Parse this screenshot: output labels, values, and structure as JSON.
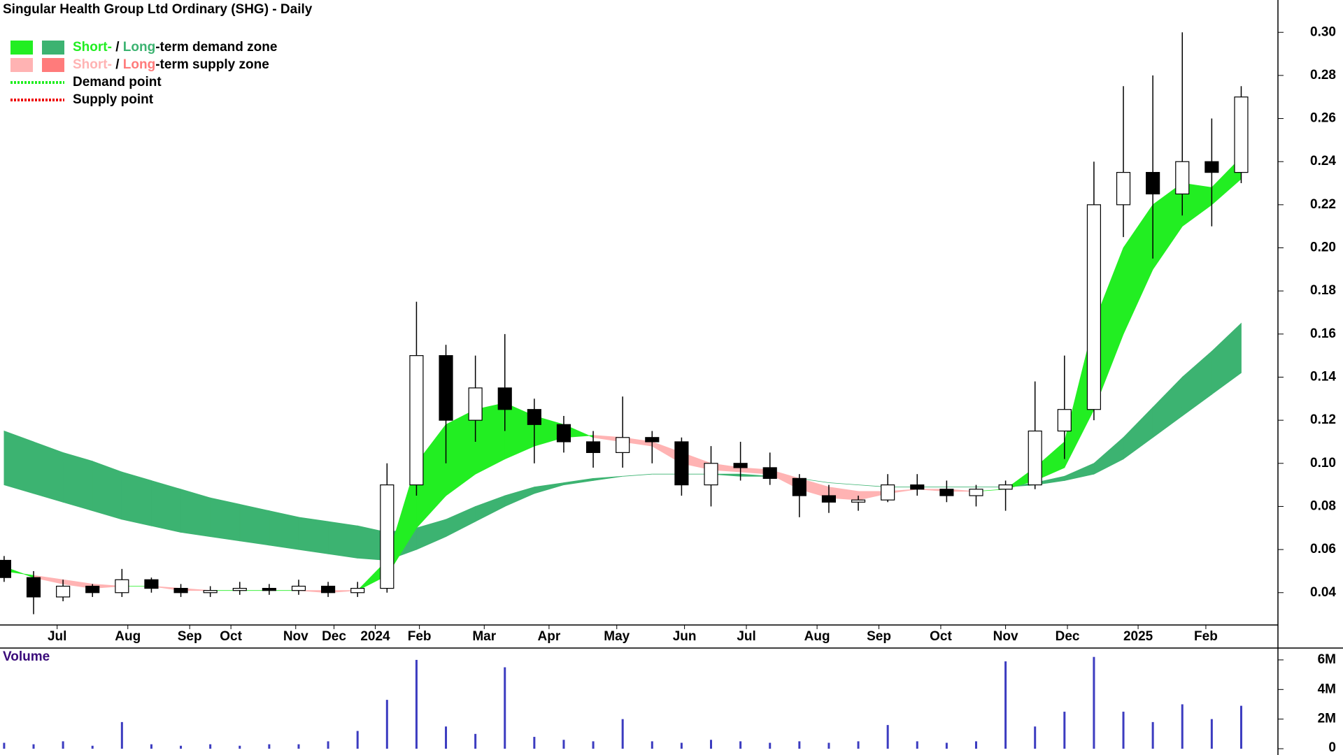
{
  "chart_data": {
    "type": "candlestick",
    "title": "Singular Health Group Ltd Ordinary (SHG) - Daily",
    "xlim": [
      -0.14,
      43.2
    ],
    "xticks": [
      {
        "value": 1.8,
        "label": "Jul"
      },
      {
        "value": 4.2,
        "label": "Aug"
      },
      {
        "value": 6.3,
        "label": "Sep"
      },
      {
        "value": 7.7,
        "label": "Oct"
      },
      {
        "value": 9.9,
        "label": "Nov"
      },
      {
        "value": 11.2,
        "label": "Dec"
      },
      {
        "value": 12.6,
        "label": "2024"
      },
      {
        "value": 14.1,
        "label": "Feb"
      },
      {
        "value": 16.3,
        "label": "Mar"
      },
      {
        "value": 18.5,
        "label": "Apr"
      },
      {
        "value": 20.8,
        "label": "May"
      },
      {
        "value": 23.1,
        "label": "Jun"
      },
      {
        "value": 25.2,
        "label": "Jul"
      },
      {
        "value": 27.6,
        "label": "Aug"
      },
      {
        "value": 29.7,
        "label": "Sep"
      },
      {
        "value": 31.8,
        "label": "Oct"
      },
      {
        "value": 34.0,
        "label": "Nov"
      },
      {
        "value": 36.1,
        "label": "Dec"
      },
      {
        "value": 38.5,
        "label": "2025"
      },
      {
        "value": 40.8,
        "label": "Feb"
      }
    ],
    "ylim": [
      0.025,
      0.315
    ],
    "yticks": [
      {
        "value": 0.04,
        "label": "0.04"
      },
      {
        "value": 0.06,
        "label": "0.06"
      },
      {
        "value": 0.08,
        "label": "0.08"
      },
      {
        "value": 0.1,
        "label": "0.10"
      },
      {
        "value": 0.12,
        "label": "0.12"
      },
      {
        "value": 0.14,
        "label": "0.14"
      },
      {
        "value": 0.16,
        "label": "0.16"
      },
      {
        "value": 0.18,
        "label": "0.18"
      },
      {
        "value": 0.2,
        "label": "0.20"
      },
      {
        "value": 0.22,
        "label": "0.22"
      },
      {
        "value": 0.24,
        "label": "0.24"
      },
      {
        "value": 0.26,
        "label": "0.26"
      },
      {
        "value": 0.28,
        "label": "0.28"
      },
      {
        "value": 0.3,
        "label": "0.30"
      }
    ],
    "up_color": "#ffffff",
    "down_color": "#000000",
    "open": [
      0.055,
      0.047,
      0.038,
      0.043,
      0.04,
      0.046,
      0.042,
      0.04,
      0.041,
      0.042,
      0.041,
      0.043,
      0.04,
      0.042,
      0.09,
      0.15,
      0.12,
      0.135,
      0.125,
      0.118,
      0.11,
      0.105,
      0.112,
      0.11,
      0.09,
      0.1,
      0.098,
      0.093,
      0.085,
      0.082,
      0.083,
      0.09,
      0.088,
      0.085,
      0.088,
      0.09,
      0.115,
      0.125,
      0.22,
      0.235,
      0.225,
      0.24,
      0.235
    ],
    "high": [
      0.057,
      0.05,
      0.046,
      0.044,
      0.051,
      0.047,
      0.044,
      0.043,
      0.045,
      0.044,
      0.046,
      0.045,
      0.045,
      0.1,
      0.175,
      0.155,
      0.15,
      0.16,
      0.13,
      0.122,
      0.115,
      0.131,
      0.115,
      0.112,
      0.108,
      0.11,
      0.105,
      0.095,
      0.09,
      0.085,
      0.095,
      0.095,
      0.092,
      0.09,
      0.092,
      0.138,
      0.15,
      0.24,
      0.275,
      0.28,
      0.3,
      0.26,
      0.275
    ],
    "low": [
      0.045,
      0.03,
      0.036,
      0.038,
      0.038,
      0.04,
      0.038,
      0.038,
      0.039,
      0.039,
      0.039,
      0.038,
      0.038,
      0.04,
      0.085,
      0.1,
      0.11,
      0.115,
      0.1,
      0.105,
      0.098,
      0.098,
      0.1,
      0.085,
      0.08,
      0.092,
      0.09,
      0.075,
      0.077,
      0.078,
      0.082,
      0.085,
      0.082,
      0.08,
      0.078,
      0.088,
      0.102,
      0.12,
      0.205,
      0.195,
      0.215,
      0.21,
      0.23
    ],
    "close": [
      0.047,
      0.038,
      0.043,
      0.04,
      0.046,
      0.042,
      0.04,
      0.041,
      0.042,
      0.041,
      0.043,
      0.04,
      0.042,
      0.09,
      0.15,
      0.12,
      0.135,
      0.125,
      0.118,
      0.11,
      0.105,
      0.112,
      0.11,
      0.09,
      0.1,
      0.098,
      0.093,
      0.085,
      0.082,
      0.083,
      0.09,
      0.088,
      0.085,
      0.088,
      0.09,
      0.115,
      0.125,
      0.22,
      0.235,
      0.225,
      0.24,
      0.235,
      0.27
    ],
    "zones": [
      {
        "demand_color": "#3cb371",
        "supply_color": "#ff7b7b",
        "fast": [
          0.115,
          0.11,
          0.105,
          0.101,
          0.096,
          0.092,
          0.088,
          0.084,
          0.081,
          0.078,
          0.075,
          0.073,
          0.071,
          0.068,
          0.07,
          0.074,
          0.08,
          0.085,
          0.089,
          0.091,
          0.093,
          0.094,
          0.095,
          0.095,
          0.095,
          0.095,
          0.094,
          0.093,
          0.091,
          0.09,
          0.089,
          0.089,
          0.089,
          0.089,
          0.089,
          0.091,
          0.094,
          0.1,
          0.112,
          0.126,
          0.14,
          0.152,
          0.165
        ],
        "slow": [
          0.09,
          0.086,
          0.082,
          0.078,
          0.074,
          0.071,
          0.068,
          0.066,
          0.064,
          0.062,
          0.06,
          0.058,
          0.056,
          0.055,
          0.06,
          0.066,
          0.073,
          0.08,
          0.086,
          0.09,
          0.092,
          0.094,
          0.095,
          0.095,
          0.095,
          0.094,
          0.094,
          0.093,
          0.091,
          0.09,
          0.089,
          0.089,
          0.089,
          0.089,
          0.089,
          0.09,
          0.092,
          0.095,
          0.102,
          0.112,
          0.122,
          0.132,
          0.142
        ]
      },
      {
        "demand_color": "#22ee22",
        "supply_color": "#ffb3b3",
        "fast": [
          0.052,
          0.047,
          0.044,
          0.042,
          0.043,
          0.043,
          0.041,
          0.041,
          0.041,
          0.041,
          0.041,
          0.04,
          0.041,
          0.055,
          0.1,
          0.118,
          0.125,
          0.128,
          0.122,
          0.118,
          0.112,
          0.11,
          0.108,
          0.1,
          0.097,
          0.096,
          0.095,
          0.088,
          0.084,
          0.083,
          0.086,
          0.088,
          0.087,
          0.087,
          0.088,
          0.098,
          0.11,
          0.165,
          0.2,
          0.22,
          0.23,
          0.228,
          0.242
        ],
        "slow": [
          0.05,
          0.048,
          0.046,
          0.044,
          0.043,
          0.043,
          0.042,
          0.041,
          0.041,
          0.041,
          0.041,
          0.041,
          0.041,
          0.048,
          0.07,
          0.085,
          0.095,
          0.102,
          0.108,
          0.112,
          0.113,
          0.112,
          0.11,
          0.105,
          0.1,
          0.098,
          0.097,
          0.093,
          0.089,
          0.087,
          0.087,
          0.088,
          0.088,
          0.087,
          0.088,
          0.092,
          0.098,
          0.125,
          0.16,
          0.19,
          0.21,
          0.22,
          0.232
        ]
      }
    ],
    "legend": [
      {
        "parts": [
          "Short-",
          " / ",
          "Long",
          "-term demand zone"
        ],
        "colors": [
          "#22ee22",
          "#000000",
          "#3cb371",
          "#000000"
        ],
        "swatches": [
          "#22ee22",
          "#3cb371"
        ]
      },
      {
        "parts": [
          "Short-",
          " / ",
          "Long",
          "-term supply zone"
        ],
        "colors": [
          "#ffb3b3",
          "#000000",
          "#ff7b7b",
          "#000000"
        ],
        "swatches": [
          "#ffb3b3",
          "#ff7b7b"
        ]
      },
      {
        "parts": [
          "Demand point"
        ],
        "colors": [
          "#000000"
        ],
        "dotted": "#22ee22"
      },
      {
        "parts": [
          "Supply point"
        ],
        "colors": [
          "#000000"
        ],
        "dotted": "#ee0000"
      }
    ],
    "volume": {
      "title": "Volume",
      "color": "#3c3cc0",
      "ylim": [
        0,
        6800000
      ],
      "yticks": [
        0,
        {
          "value": 2000000,
          "label": "2M"
        },
        {
          "value": 4000000,
          "label": "4M"
        },
        {
          "value": 6000000,
          "label": "6M"
        }
      ],
      "values": [
        400000,
        300000,
        500000,
        200000,
        1800000,
        300000,
        200000,
        300000,
        200000,
        300000,
        300000,
        500000,
        1200000,
        3300000,
        6000000,
        1500000,
        1000000,
        5500000,
        800000,
        600000,
        500000,
        2000000,
        500000,
        400000,
        600000,
        500000,
        400000,
        500000,
        400000,
        500000,
        1600000,
        500000,
        400000,
        500000,
        5900000,
        1500000,
        2500000,
        6200000,
        2500000,
        1800000,
        3000000,
        2000000,
        2900000
      ]
    }
  }
}
